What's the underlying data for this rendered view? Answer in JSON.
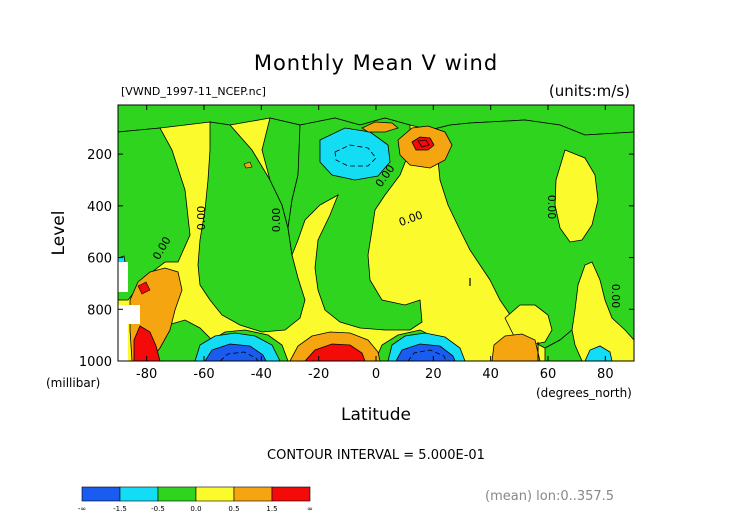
{
  "chart_data": {
    "type": "heatmap",
    "title": "Monthly Mean V wind",
    "subtitle_left": "[VWND_1997-11_NCEP.nc]",
    "subtitle_right": "(units:m/s)",
    "xlabel": "Latitude",
    "x_unit": "(degrees_north)",
    "ylabel": "Level",
    "y_unit": "(millibar)",
    "xlim": [
      -90,
      90
    ],
    "ylim": [
      1000,
      10
    ],
    "x_ticks": [
      -80,
      -60,
      -40,
      -20,
      0,
      20,
      40,
      60,
      80
    ],
    "y_ticks": [
      200,
      400,
      600,
      800,
      1000
    ],
    "contour_interval_text": "CONTOUR INTERVAL = 5.000E-01",
    "contour_label": "0.00",
    "footer_text": "(mean) lon:0..357.5",
    "colorbar": {
      "labels": [
        "-∞",
        "-1.5",
        "-0.5",
        "0.0",
        "0.5",
        "1.5",
        "∞"
      ],
      "colors": [
        "#1a5cf0",
        "#13dcf5",
        "#2ed41e",
        "#fafa2d",
        "#f5a50f",
        "#f50a0a"
      ]
    },
    "colors": {
      "strong_negative": "#1a5cf0",
      "negative": "#13dcf5",
      "slight_negative": "#2ed41e",
      "slight_positive": "#fafa2d",
      "positive": "#f5a50f",
      "strong_positive": "#f50a0a",
      "missing": "#ffffff"
    }
  }
}
